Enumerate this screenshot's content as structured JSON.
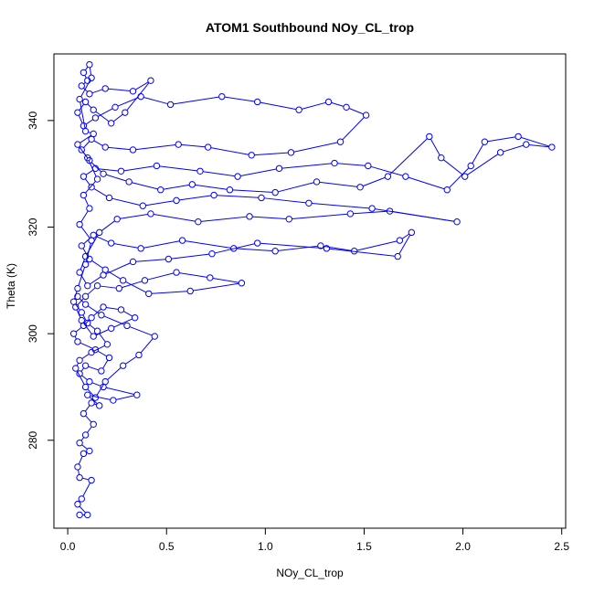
{
  "chart_data": {
    "type": "line",
    "title": "ATOM1 Southbound NOy_CL_trop",
    "xlabel": "NOy_CL_trop",
    "ylabel": "Theta (K)",
    "xlim": [
      -0.07,
      2.52
    ],
    "ylim": [
      263.5,
      352.5
    ],
    "xticks": [
      0.0,
      0.5,
      1.0,
      1.5,
      2.0,
      2.5
    ],
    "xtick_labels": [
      "0.0",
      "0.5",
      "1.0",
      "1.5",
      "2.0",
      "2.5"
    ],
    "yticks": [
      280,
      300,
      320,
      340
    ],
    "ytick_labels": [
      "280",
      "300",
      "320",
      "340"
    ],
    "grid": false,
    "marker": "open-circle",
    "series_color": "#0000ff",
    "series": [
      {
        "points": [
          [
            0.06,
            266.0
          ],
          [
            0.1,
            266.0
          ],
          [
            0.05,
            268.0
          ],
          [
            0.07,
            269.0
          ],
          [
            0.12,
            272.5
          ],
          [
            0.06,
            273.0
          ],
          [
            0.05,
            275.0
          ],
          [
            0.08,
            277.5
          ],
          [
            0.11,
            278.0
          ],
          [
            0.06,
            279.5
          ],
          [
            0.09,
            281.0
          ],
          [
            0.13,
            283.0
          ],
          [
            0.08,
            285.0
          ],
          [
            0.12,
            287.0
          ],
          [
            0.16,
            286.5
          ],
          [
            0.1,
            288.5
          ],
          [
            0.23,
            287.5
          ],
          [
            0.35,
            288.5
          ],
          [
            0.18,
            290.0
          ],
          [
            0.11,
            291.0
          ],
          [
            0.06,
            292.5
          ],
          [
            0.09,
            294.0
          ],
          [
            0.17,
            293.0
          ],
          [
            0.21,
            295.5
          ],
          [
            0.14,
            297.0
          ],
          [
            0.05,
            298.5
          ],
          [
            0.03,
            300.0
          ],
          [
            0.08,
            301.5
          ],
          [
            0.12,
            303.0
          ],
          [
            0.18,
            305.0
          ],
          [
            0.27,
            304.5
          ],
          [
            0.34,
            303.0
          ],
          [
            0.22,
            301.0
          ],
          [
            0.13,
            299.5
          ],
          [
            0.07,
            302.5
          ],
          [
            0.04,
            305.0
          ],
          [
            0.09,
            307.0
          ],
          [
            0.15,
            309.0
          ],
          [
            0.26,
            308.5
          ],
          [
            0.39,
            310.0
          ],
          [
            0.55,
            311.5
          ],
          [
            0.72,
            310.5
          ],
          [
            0.88,
            309.5
          ],
          [
            0.62,
            308.0
          ],
          [
            0.41,
            307.5
          ],
          [
            0.28,
            310.0
          ],
          [
            0.19,
            312.0
          ],
          [
            0.11,
            314.0
          ],
          [
            0.07,
            316.5
          ],
          [
            0.13,
            318.5
          ],
          [
            0.22,
            317.0
          ],
          [
            0.37,
            316.0
          ],
          [
            0.58,
            317.5
          ],
          [
            0.84,
            316.0
          ],
          [
            1.05,
            315.5
          ],
          [
            1.28,
            316.5
          ],
          [
            1.45,
            315.5
          ],
          [
            1.68,
            317.5
          ],
          [
            1.74,
            319.0
          ],
          [
            1.67,
            314.5
          ],
          [
            1.31,
            316.0
          ],
          [
            0.96,
            317.0
          ],
          [
            0.73,
            315.0
          ],
          [
            0.51,
            314.0
          ],
          [
            0.33,
            313.5
          ],
          [
            0.18,
            311.0
          ],
          [
            0.1,
            309.0
          ],
          [
            0.06,
            311.5
          ],
          [
            0.09,
            314.5
          ],
          [
            0.16,
            319.0
          ],
          [
            0.25,
            321.5
          ],
          [
            0.42,
            322.5
          ],
          [
            0.66,
            321.0
          ],
          [
            0.92,
            322.0
          ],
          [
            1.12,
            321.5
          ],
          [
            1.43,
            322.5
          ],
          [
            1.63,
            323.0
          ],
          [
            1.97,
            321.0
          ],
          [
            1.54,
            323.5
          ],
          [
            1.22,
            324.5
          ],
          [
            0.98,
            325.5
          ],
          [
            0.74,
            326.0
          ],
          [
            0.55,
            325.0
          ],
          [
            0.38,
            324.0
          ],
          [
            0.21,
            325.5
          ],
          [
            0.12,
            327.5
          ],
          [
            0.08,
            329.5
          ],
          [
            0.14,
            331.0
          ],
          [
            0.27,
            330.5
          ],
          [
            0.45,
            331.5
          ],
          [
            0.67,
            330.5
          ],
          [
            0.86,
            329.5
          ],
          [
            1.07,
            331.0
          ],
          [
            1.35,
            332.0
          ],
          [
            1.52,
            331.5
          ],
          [
            1.71,
            329.5
          ],
          [
            1.92,
            327.0
          ],
          [
            2.04,
            331.5
          ],
          [
            2.11,
            336.0
          ],
          [
            2.28,
            337.0
          ],
          [
            2.45,
            335.0
          ],
          [
            2.32,
            335.5
          ],
          [
            2.19,
            334.0
          ],
          [
            2.01,
            329.5
          ],
          [
            1.89,
            333.0
          ],
          [
            1.83,
            337.0
          ],
          [
            1.62,
            329.5
          ],
          [
            1.48,
            327.5
          ],
          [
            1.26,
            328.5
          ],
          [
            1.05,
            326.5
          ],
          [
            0.82,
            327.0
          ],
          [
            0.63,
            328.0
          ],
          [
            0.47,
            327.0
          ],
          [
            0.31,
            328.5
          ],
          [
            0.18,
            330.0
          ],
          [
            0.11,
            332.5
          ],
          [
            0.07,
            334.5
          ],
          [
            0.12,
            336.5
          ],
          [
            0.19,
            335.0
          ],
          [
            0.33,
            334.5
          ],
          [
            0.56,
            335.5
          ],
          [
            0.71,
            335.0
          ],
          [
            0.93,
            333.5
          ],
          [
            1.13,
            334.0
          ],
          [
            1.38,
            336.0
          ],
          [
            1.51,
            341.0
          ],
          [
            1.41,
            342.5
          ],
          [
            1.32,
            343.5
          ],
          [
            1.17,
            342.0
          ],
          [
            0.96,
            343.5
          ],
          [
            0.78,
            344.5
          ],
          [
            0.52,
            343.0
          ],
          [
            0.37,
            344.5
          ],
          [
            0.24,
            342.5
          ],
          [
            0.14,
            340.5
          ],
          [
            0.08,
            339.0
          ],
          [
            0.05,
            341.5
          ],
          [
            0.09,
            343.5
          ],
          [
            0.13,
            342.0
          ],
          [
            0.22,
            339.5
          ],
          [
            0.29,
            341.5
          ],
          [
            0.42,
            347.5
          ],
          [
            0.33,
            345.5
          ],
          [
            0.19,
            346.0
          ],
          [
            0.11,
            345.0
          ],
          [
            0.07,
            346.5
          ],
          [
            0.1,
            347.5
          ],
          [
            0.08,
            349.0
          ],
          [
            0.11,
            350.5
          ],
          [
            0.12,
            348.0
          ],
          [
            0.06,
            344.0
          ],
          [
            0.09,
            338.0
          ],
          [
            0.13,
            337.5
          ],
          [
            0.05,
            335.5
          ],
          [
            0.1,
            333.0
          ],
          [
            0.15,
            329.0
          ],
          [
            0.08,
            326.0
          ],
          [
            0.11,
            323.5
          ],
          [
            0.06,
            320.5
          ],
          [
            0.12,
            317.5
          ],
          [
            0.09,
            313.0
          ],
          [
            0.05,
            308.5
          ],
          [
            0.03,
            306.0
          ],
          [
            0.07,
            304.0
          ],
          [
            0.1,
            302.0
          ],
          [
            0.15,
            300.5
          ],
          [
            0.2,
            298.0
          ],
          [
            0.12,
            296.5
          ],
          [
            0.06,
            295.0
          ],
          [
            0.04,
            293.5
          ],
          [
            0.09,
            290.0
          ],
          [
            0.14,
            288.0
          ],
          [
            0.19,
            291.0
          ],
          [
            0.28,
            294.0
          ],
          [
            0.36,
            296.0
          ],
          [
            0.44,
            299.5
          ],
          [
            0.3,
            301.5
          ],
          [
            0.17,
            303.5
          ],
          [
            0.09,
            305.5
          ],
          [
            0.05,
            307.0
          ]
        ]
      }
    ]
  }
}
